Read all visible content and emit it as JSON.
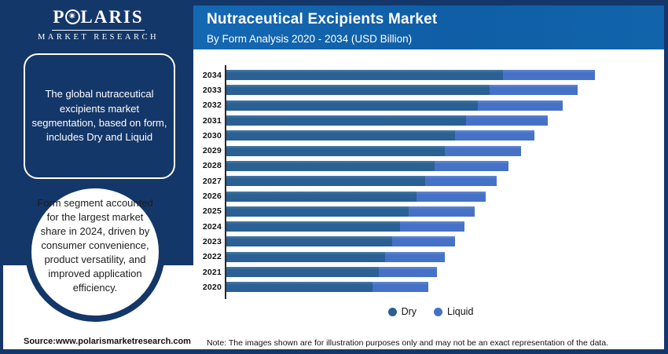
{
  "logo": {
    "brand_left": "P",
    "brand_right": "LARIS",
    "o_star_icon": "compass-star-in-o",
    "star_glyph": "✴",
    "subbrand": "MARKET RESEARCH"
  },
  "header": {
    "title": "Nutraceutical Excipients Market",
    "subtitle": "By Form Analysis 2020 - 2034 (USD Billion)"
  },
  "sidebar": {
    "callout_box_text": "The global nutraceutical excipients market segmentation, based on form, includes Dry and Liquid",
    "callout_circle_text": "Form segment accounted for the largest market share in 2024, driven by consumer convenience, product versatility, and improved application efficiency."
  },
  "footer": {
    "source": "Source:www.polarismarketresearch.com",
    "note": "Note: The images shown are for illustration purposes only and may not be an exact representation of the data."
  },
  "colors": {
    "navy": "#143769",
    "header_blue_left": "#1468b3",
    "header_blue_right": "#1164ab",
    "dry": "#2a6093",
    "dry_highlight": "#477ca8",
    "liquid": "#4571c7",
    "liquid_highlight": "#6289d4",
    "axis": "#2b2b2b"
  },
  "chart_data": {
    "type": "bar",
    "orientation": "horizontal",
    "stacked": true,
    "title": "Nutraceutical Excipients Market",
    "subtitle": "By Form Analysis 2020 - 2034 (USD Billion)",
    "value_unit": "USD Billion (axis unlabeled; values are relative estimates, 2034 total = 100)",
    "value_axis_labels_visible": false,
    "grid": false,
    "legend": [
      "Dry",
      "Liquid"
    ],
    "legend_position": "bottom-center",
    "categories": [
      "2034",
      "2033",
      "2032",
      "2031",
      "2030",
      "2029",
      "2028",
      "2027",
      "2026",
      "2025",
      "2024",
      "2023",
      "2022",
      "2021",
      "2020"
    ],
    "series": [
      {
        "name": "Dry",
        "values": [
          75.1,
          71.4,
          68.2,
          65.0,
          62.0,
          59.3,
          56.5,
          53.9,
          51.6,
          49.5,
          47.1,
          45.0,
          43.1,
          41.4,
          39.7
        ]
      },
      {
        "name": "Liquid",
        "values": [
          24.9,
          23.9,
          23.0,
          22.2,
          21.5,
          20.7,
          20.0,
          19.4,
          18.8,
          17.9,
          17.5,
          17.1,
          16.2,
          15.8,
          15.1
        ]
      }
    ],
    "totals": [
      100.0,
      95.3,
      91.2,
      87.2,
      83.5,
      80.0,
      76.5,
      73.3,
      70.4,
      67.4,
      64.6,
      62.1,
      59.3,
      57.2,
      54.8
    ],
    "xlim": [
      0,
      119
    ]
  }
}
